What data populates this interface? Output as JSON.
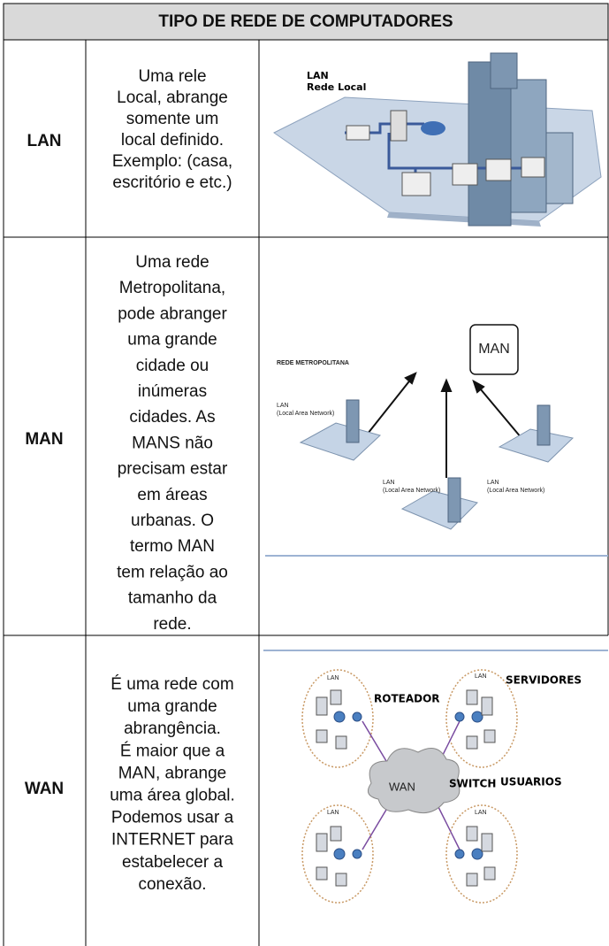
{
  "header": {
    "title": "TIPO DE REDE DE COMPUTADORES"
  },
  "table": {
    "rows": [
      {
        "type": "LAN",
        "description": [
          "Uma rele",
          "Local, abrange",
          "somente um",
          "local definido.",
          "Exemplo: (casa,",
          "escritório e etc.)"
        ],
        "image": {
          "labels": [
            "LAN",
            "Rede Local"
          ]
        }
      },
      {
        "type": "MAN",
        "description": [
          "Uma rede",
          "Metropolitana,",
          "pode abranger",
          "uma grande",
          "cidade ou",
          "inúmeras",
          "cidades. As",
          "MANS não",
          "precisam estar",
          "em áreas",
          "urbanas. O",
          "termo MAN",
          "tem relação ao",
          "tamanho da",
          "rede."
        ],
        "image": {
          "labels": [
            "MAN",
            "REDE METROPOLITANA",
            "LAN",
            "(Local Area Network)",
            "LAN",
            "(Local Area Network)",
            "LAN",
            "(Local Area Network)"
          ]
        }
      },
      {
        "type": "WAN",
        "description": [
          "É uma rede com",
          "uma grande",
          "abrangência.",
          "É maior que a",
          "MAN, abrange",
          "uma área global.",
          "Podemos usar a",
          "INTERNET para",
          "estabelecer a",
          "conexão."
        ],
        "image": {
          "labels": [
            "ROTEADOR",
            "SERVIDORES",
            "WAN",
            "SWITCH",
            "USUARIOS",
            "LAN",
            "LAN",
            "LAN",
            "LAN"
          ]
        }
      }
    ]
  }
}
